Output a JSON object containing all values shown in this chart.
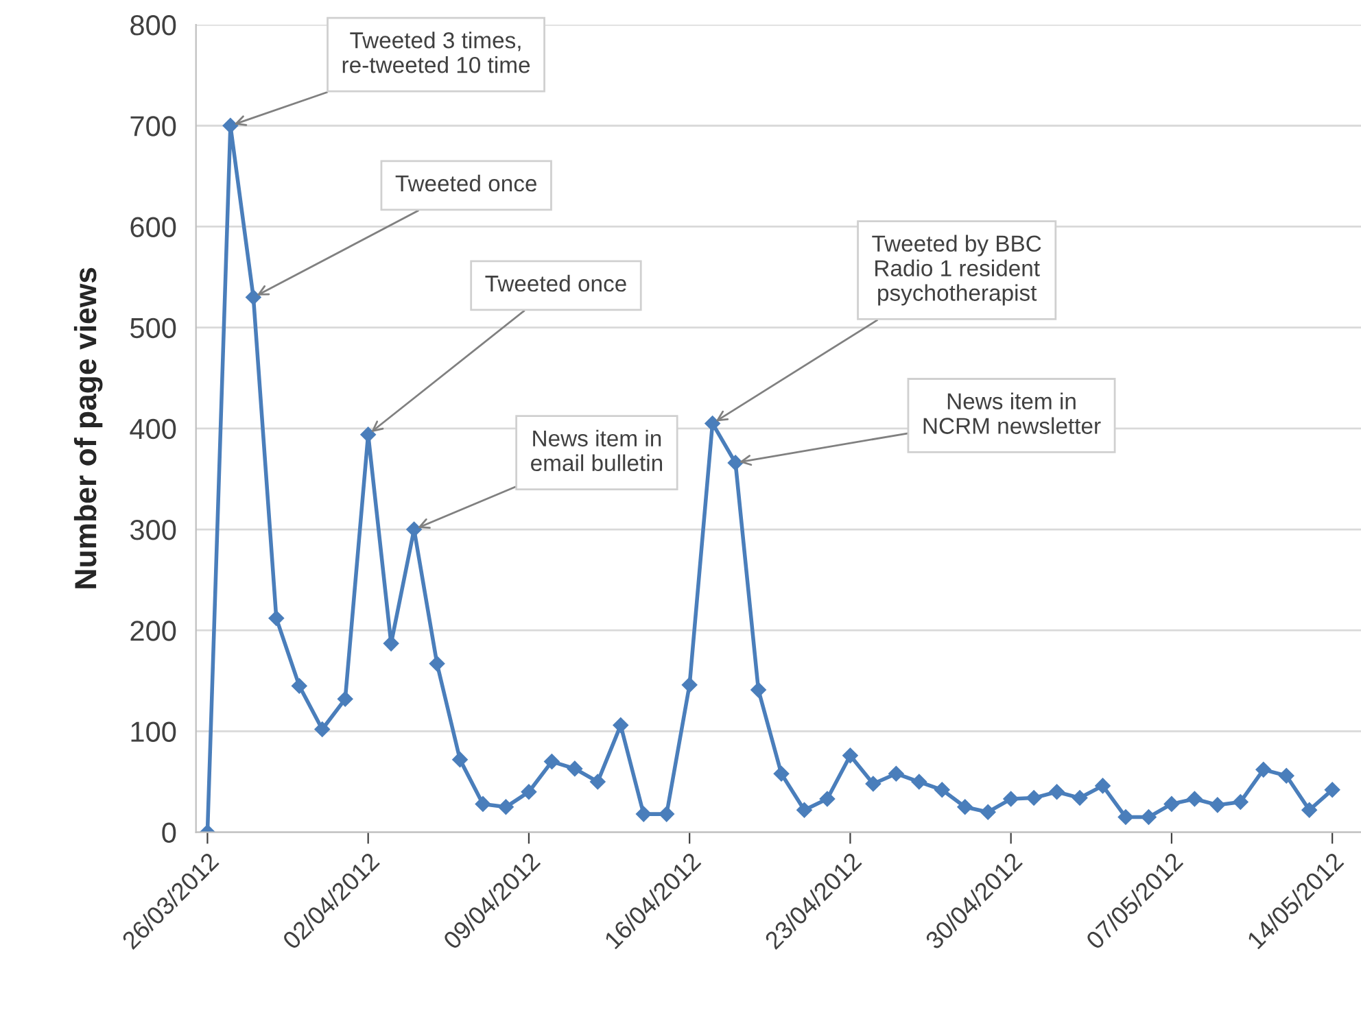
{
  "chart_data": {
    "type": "line",
    "ylabel": "Number of page views",
    "x": [
      "2012-03-26",
      "2012-03-27",
      "2012-03-28",
      "2012-03-29",
      "2012-03-30",
      "2012-03-31",
      "2012-04-01",
      "2012-04-02",
      "2012-04-03",
      "2012-04-04",
      "2012-04-05",
      "2012-04-06",
      "2012-04-07",
      "2012-04-08",
      "2012-04-09",
      "2012-04-10",
      "2012-04-11",
      "2012-04-12",
      "2012-04-13",
      "2012-04-14",
      "2012-04-15",
      "2012-04-16",
      "2012-04-17",
      "2012-04-18",
      "2012-04-19",
      "2012-04-20",
      "2012-04-21",
      "2012-04-22",
      "2012-04-23",
      "2012-04-24",
      "2012-04-25",
      "2012-04-26",
      "2012-04-27",
      "2012-04-28",
      "2012-04-29",
      "2012-04-30",
      "2012-05-01",
      "2012-05-02",
      "2012-05-03",
      "2012-05-04",
      "2012-05-05",
      "2012-05-06",
      "2012-05-07",
      "2012-05-08",
      "2012-05-09",
      "2012-05-10",
      "2012-05-11",
      "2012-05-12",
      "2012-05-13",
      "2012-05-14"
    ],
    "series": [
      {
        "color": "#4a7ebb",
        "values": [
          0,
          700,
          530,
          212,
          145,
          102,
          132,
          394,
          187,
          300,
          167,
          72,
          28,
          25,
          40,
          70,
          63,
          50,
          106,
          18,
          18,
          146,
          405,
          366,
          141,
          58,
          22,
          33,
          76,
          48,
          58,
          50,
          42,
          25,
          20,
          33,
          34,
          40,
          34,
          46,
          15,
          15,
          28,
          33,
          27,
          30,
          62,
          56,
          22,
          42
        ]
      }
    ],
    "marker": "diamond",
    "line_style": "solid",
    "grid": "y",
    "legend": false,
    "ylim": [
      0,
      800
    ],
    "yticks": [
      0,
      100,
      200,
      300,
      400,
      500,
      600,
      700,
      800
    ],
    "xlim": [
      "2012-03-25T12:00",
      "2012-05-15T06:00"
    ],
    "xticks": [
      {
        "value": "2012-03-26",
        "label": "26/03/2012"
      },
      {
        "value": "2012-04-02",
        "label": "02/04/2012"
      },
      {
        "value": "2012-04-09",
        "label": "09/04/2012"
      },
      {
        "value": "2012-04-16",
        "label": "16/04/2012"
      },
      {
        "value": "2012-04-23",
        "label": "23/04/2012"
      },
      {
        "value": "2012-04-30",
        "label": "30/04/2012"
      },
      {
        "value": "2012-05-07",
        "label": "07/05/2012"
      },
      {
        "value": "2012-05-14",
        "label": "14/05/2012"
      }
    ],
    "annotations": [
      {
        "text": "Tweeted 3 times,\nre-tweeted 10 time",
        "x": "2012-03-27",
        "y": 700
      },
      {
        "text": "Tweeted once",
        "x": "2012-03-28",
        "y": 530
      },
      {
        "text": "Tweeted once",
        "x": "2012-04-02",
        "y": 394
      },
      {
        "text": "News item in\nemail bulletin",
        "x": "2012-04-04",
        "y": 300
      },
      {
        "text": "Tweeted by BBC\nRadio 1 resident\npsychotherapist",
        "x": "2012-04-17",
        "y": 405
      },
      {
        "text": "News item in\nNCRM newsletter",
        "x": "2012-04-18",
        "y": 366
      }
    ]
  }
}
